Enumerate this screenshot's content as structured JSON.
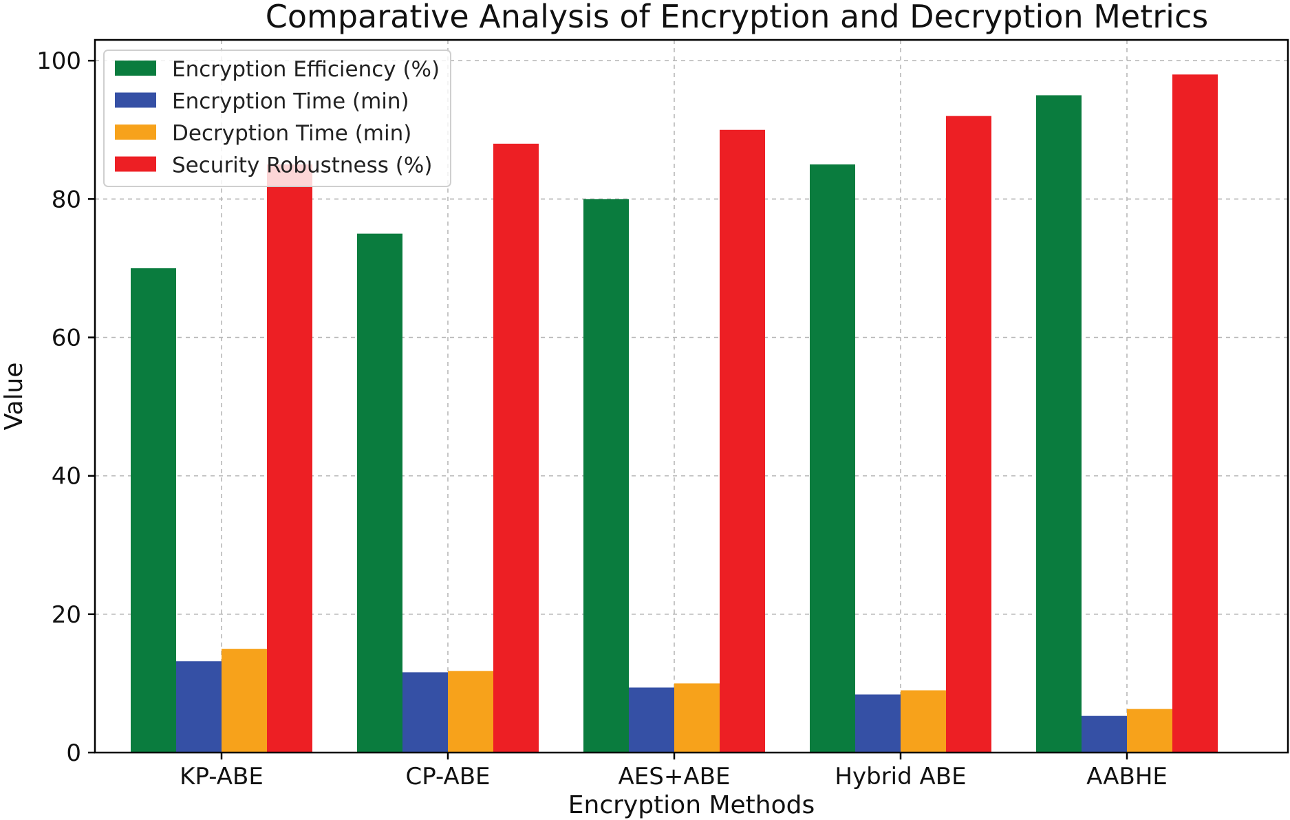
{
  "chart_data": {
    "type": "bar",
    "title": "Comparative Analysis of Encryption and Decryption Metrics",
    "xlabel": "Encryption Methods",
    "ylabel": "Value",
    "categories": [
      "KP-ABE",
      "CP-ABE",
      "AES+ABE",
      "Hybrid ABE",
      "AABHE"
    ],
    "ylim": [
      0,
      103
    ],
    "yticks": [
      0,
      20,
      40,
      60,
      80,
      100
    ],
    "grid": true,
    "legend_position": "top-left",
    "series": [
      {
        "name": "Encryption Efficiency (%)",
        "color": "#0a7c3e",
        "values": [
          70,
          75,
          80,
          85,
          95
        ]
      },
      {
        "name": "Encryption Time (min)",
        "color": "#3550a5",
        "values": [
          13.2,
          11.6,
          9.4,
          8.4,
          5.3
        ]
      },
      {
        "name": "Decryption Time (min)",
        "color": "#f7a21b",
        "values": [
          15,
          11.8,
          10,
          9,
          6.3
        ]
      },
      {
        "name": "Security Robustness (%)",
        "color": "#ed1f24",
        "values": [
          85,
          88,
          90,
          92,
          98
        ]
      }
    ]
  }
}
